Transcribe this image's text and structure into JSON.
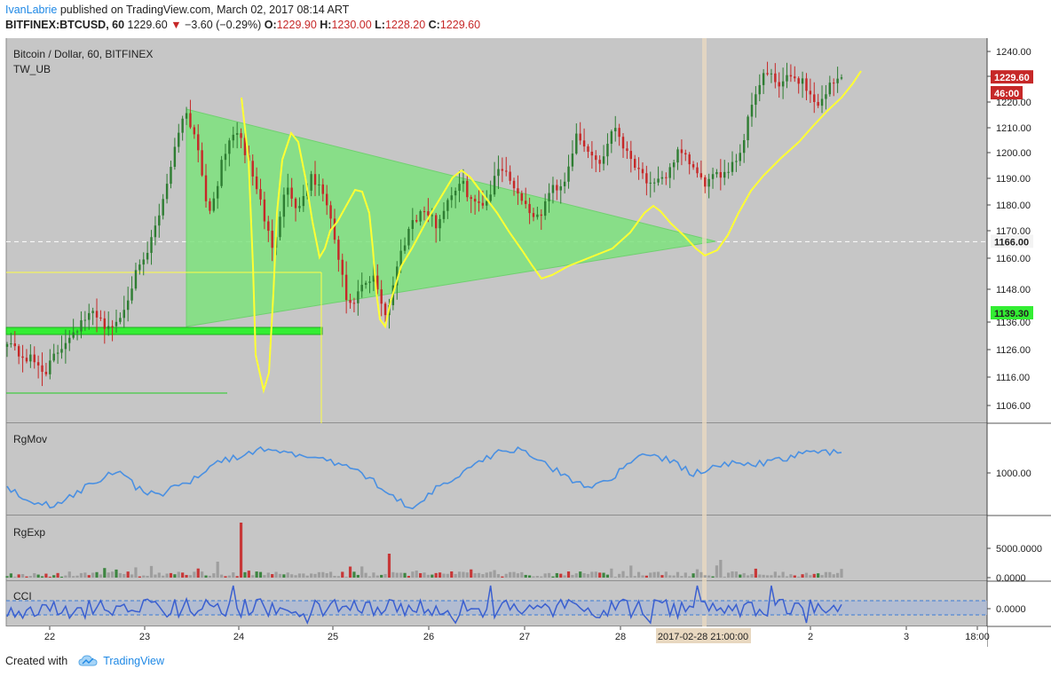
{
  "header": {
    "author": "IvanLabrie",
    "published_text": "published on TradingView.com, March 02, 2017 08:14 ART",
    "symbol_line": "BITFINEX:BTCUSD, 60",
    "last_price": "1229.60",
    "change": "−3.60 (−0.29%)",
    "open_label": "O:",
    "open": "1229.90",
    "high_label": "H:",
    "high": "1230.00",
    "low_label": "L:",
    "low": "1228.20",
    "close_label": "C:",
    "close": "1229.60"
  },
  "footer": {
    "created_with": "Created with",
    "brand": "TradingView"
  },
  "colors": {
    "panel_bg": "#c6c6c6",
    "up_candle": "#2e7d32",
    "down_candle": "#c62828",
    "yellow_line": "#ffff33",
    "triangle_fill": "#7de27d",
    "support_bar": "#33ee33",
    "blue_line": "#4a90e2"
  },
  "chart_data": [
    {
      "type": "candlestick",
      "title": "Bitcoin / Dollar, 60, BITFINEX",
      "indicator": "TW_UB",
      "y_axis_ticks": [
        "1240.00",
        "1230.00",
        "1220.00",
        "1210.00",
        "1200.00",
        "1190.00",
        "1180.00",
        "1170.00",
        "1160.00",
        "1148.00",
        "1136.00",
        "1126.00",
        "1116.00",
        "1106.00"
      ],
      "ylim": [
        1100,
        1245
      ],
      "x_tick_labels": [
        "22",
        "23",
        "24",
        "25",
        "26",
        "27",
        "28",
        "2",
        "3",
        "18:00"
      ],
      "crosshair_time_label": "2017-02-28 21:00:00",
      "price_labels": {
        "last": "1229.60",
        "countdown": "46:00",
        "dashed_level": "1166.00",
        "support_level": "1139.30"
      },
      "close_path": [
        1130,
        1124,
        1122,
        1118,
        1125,
        1132,
        1136,
        1140,
        1133,
        1138,
        1152,
        1160,
        1176,
        1196,
        1218,
        1205,
        1175,
        1196,
        1210,
        1198,
        1182,
        1162,
        1188,
        1178,
        1190,
        1185,
        1165,
        1140,
        1148,
        1152,
        1138,
        1160,
        1174,
        1178,
        1172,
        1184,
        1188,
        1180,
        1182,
        1196,
        1188,
        1180,
        1174,
        1186,
        1188,
        1206,
        1200,
        1196,
        1212,
        1200,
        1194,
        1186,
        1190,
        1200,
        1196,
        1188,
        1190,
        1194,
        1200,
        1222,
        1232,
        1226,
        1230,
        1228,
        1218,
        1226,
        1229.6
      ]
    },
    {
      "type": "line",
      "title": "RgMov",
      "y_axis_ticks": [
        "1000.00"
      ]
    },
    {
      "type": "bar",
      "title": "RgExp",
      "y_axis_ticks": [
        "5000.0000",
        "0.0000"
      ]
    },
    {
      "type": "line",
      "title": "CCI",
      "y_axis_ticks": [
        "0.0000"
      ]
    }
  ]
}
